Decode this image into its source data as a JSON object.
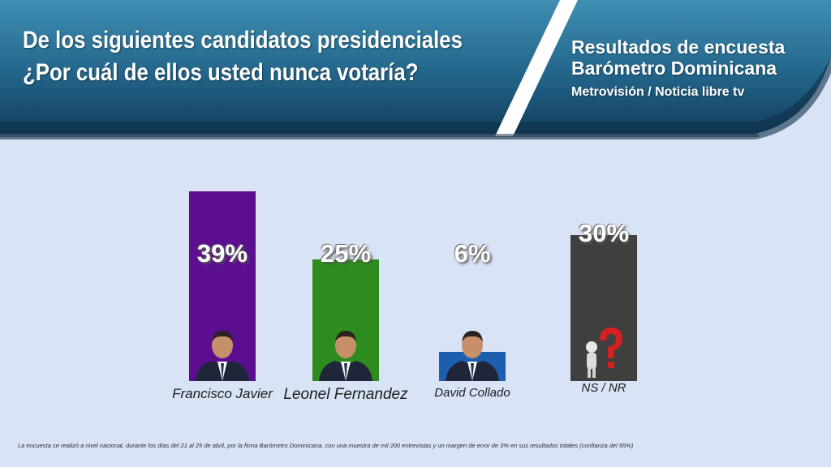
{
  "header": {
    "title_line1": "De los siguientes candidatos presidenciales",
    "title_line2": "¿Por cuál de ellos usted nunca votaría?",
    "survey_line1": "Resultados de encuesta",
    "survey_line2": "Barómetro Dominicana",
    "media": "Metrovisión / Noticia libre tv"
  },
  "chart_data": {
    "type": "bar",
    "categories": [
      "Francisco Javier",
      "Leonel Fernandez",
      "David Collado",
      "NS / NR"
    ],
    "values": [
      39,
      25,
      6,
      30
    ],
    "value_labels": [
      "39%",
      "25%",
      "6%",
      "30%"
    ],
    "colors": [
      "#5c0e91",
      "#2e8b1d",
      "#1c5fae",
      "#3f3f3f"
    ],
    "ylim": [
      0,
      40
    ]
  },
  "footnote": "La encuesta se realizó a nivel nacional, durante los días del 21 al 25 de abril, por la firma Barómetro Dominicana, con una muestra de mil 200 entrevistas y un margen de error de 3% en sus resultados totales (confianza del 95%)"
}
